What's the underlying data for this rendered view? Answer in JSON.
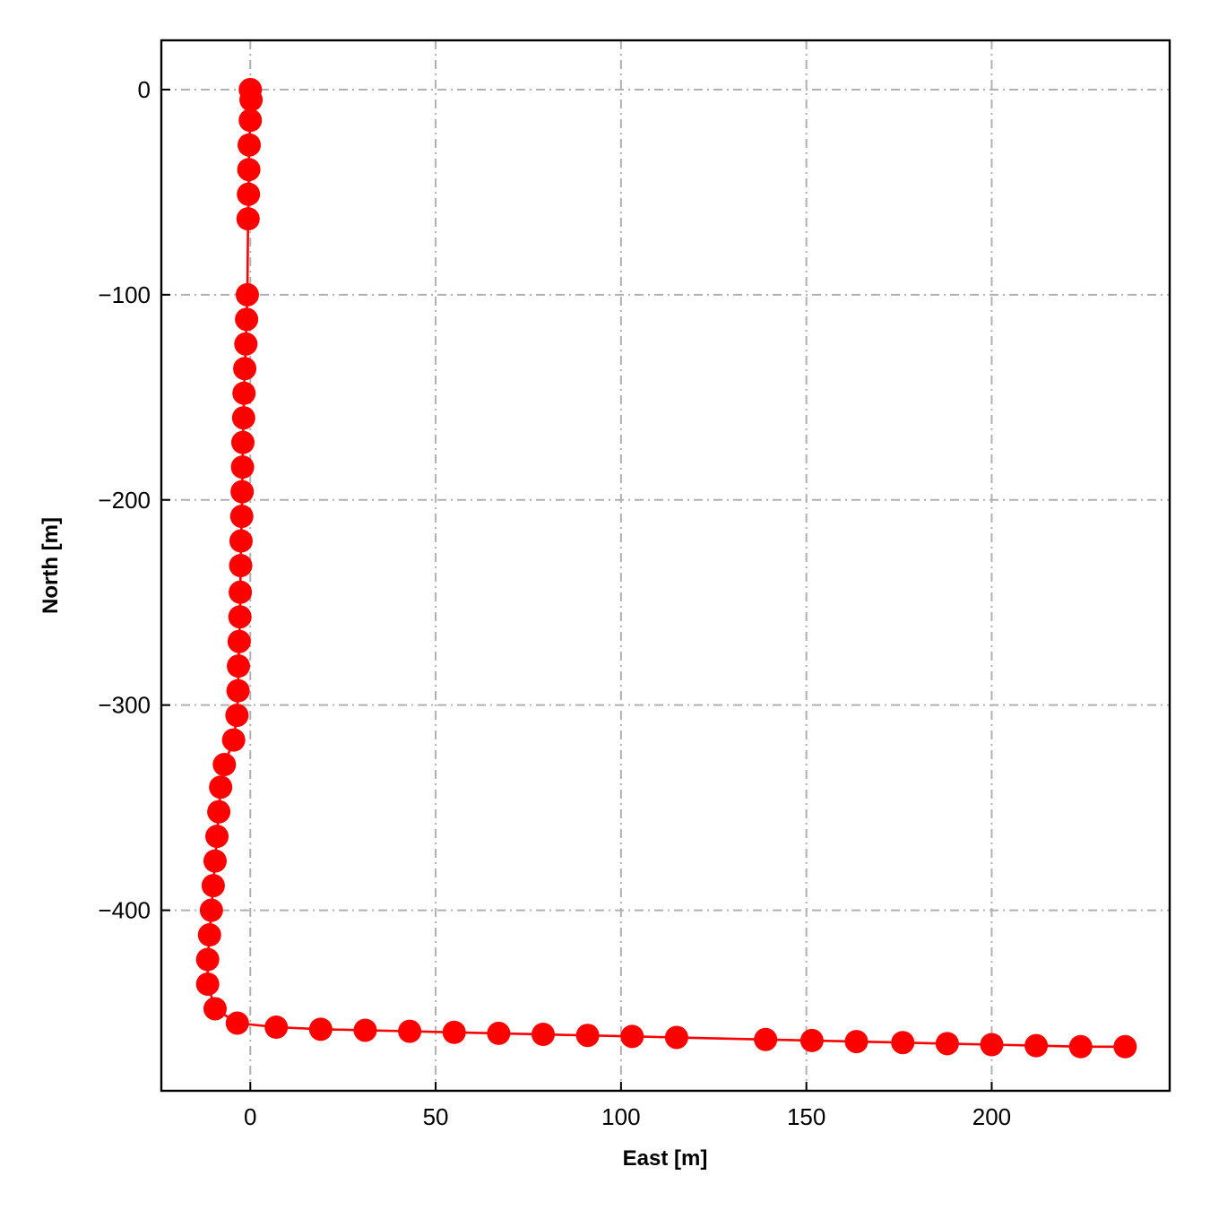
{
  "chart_data": {
    "type": "line",
    "xlabel": "East [m]",
    "ylabel": "North [m]",
    "xlim": [
      -24,
      248
    ],
    "ylim": [
      -488,
      24
    ],
    "grid": true,
    "grid_style": "dash-dot",
    "xticks": [
      0,
      50,
      100,
      150,
      200
    ],
    "yticks": [
      0,
      -100,
      -200,
      -300,
      -400
    ],
    "xtick_labels": [
      "0",
      "50",
      "100",
      "150",
      "200"
    ],
    "ytick_labels": [
      "0",
      "−100",
      "−200",
      "−300",
      "−400"
    ],
    "series": [
      {
        "color": "#ff0000",
        "marker": "circle",
        "points": [
          [
            0.0,
            0.0
          ],
          [
            0.2,
            -5.0
          ],
          [
            0.0,
            -15.0
          ],
          [
            -0.3,
            -27.0
          ],
          [
            -0.4,
            -39.0
          ],
          [
            -0.5,
            -51.0
          ],
          [
            -0.6,
            -63.0
          ],
          [
            -0.8,
            -100.0
          ],
          [
            -1.0,
            -112.0
          ],
          [
            -1.2,
            -124.0
          ],
          [
            -1.5,
            -136.0
          ],
          [
            -1.7,
            -148.0
          ],
          [
            -1.8,
            -160.0
          ],
          [
            -2.0,
            -172.0
          ],
          [
            -2.1,
            -184.0
          ],
          [
            -2.2,
            -196.0
          ],
          [
            -2.3,
            -208.0
          ],
          [
            -2.5,
            -220.0
          ],
          [
            -2.6,
            -232.0
          ],
          [
            -2.7,
            -245.0
          ],
          [
            -2.8,
            -257.0
          ],
          [
            -3.0,
            -269.0
          ],
          [
            -3.2,
            -281.0
          ],
          [
            -3.3,
            -293.0
          ],
          [
            -3.6,
            -305.0
          ],
          [
            -4.5,
            -317.0
          ],
          [
            -7.0,
            -329.0
          ],
          [
            -8.0,
            -340.0
          ],
          [
            -8.5,
            -352.0
          ],
          [
            -9.0,
            -364.0
          ],
          [
            -9.5,
            -376.0
          ],
          [
            -10.0,
            -388.0
          ],
          [
            -10.5,
            -400.0
          ],
          [
            -11.0,
            -412.0
          ],
          [
            -11.5,
            -424.0
          ],
          [
            -11.5,
            -436.0
          ],
          [
            -9.5,
            -448.0
          ],
          [
            -3.5,
            -455.0
          ],
          [
            7.0,
            -457.0
          ],
          [
            19.0,
            -458.0
          ],
          [
            31.0,
            -458.5
          ],
          [
            43.0,
            -459.0
          ],
          [
            55.0,
            -459.5
          ],
          [
            67.0,
            -460.0
          ],
          [
            79.0,
            -460.5
          ],
          [
            91.0,
            -461.0
          ],
          [
            103.0,
            -461.5
          ],
          [
            115.0,
            -462.0
          ],
          [
            139.0,
            -463.0
          ],
          [
            151.5,
            -463.5
          ],
          [
            163.5,
            -464.0
          ],
          [
            176.0,
            -464.5
          ],
          [
            188.0,
            -465.0
          ],
          [
            200.0,
            -465.5
          ],
          [
            212.0,
            -466.0
          ],
          [
            224.0,
            -466.5
          ],
          [
            236.0,
            -466.5
          ]
        ]
      }
    ]
  }
}
